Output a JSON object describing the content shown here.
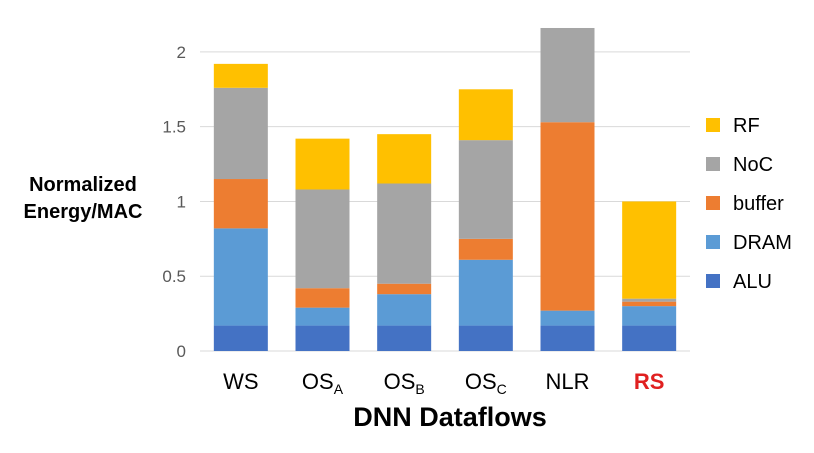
{
  "chart_data": {
    "type": "bar",
    "stacked": true,
    "xlabel": "DNN Dataflows",
    "ylabel": "Normalized Energy/MAC",
    "ylim": [
      0,
      2.2
    ],
    "yticks": [
      0,
      0.5,
      1,
      1.5,
      2
    ],
    "grid": true,
    "legend_placement": "right",
    "categories": [
      {
        "base": "WS",
        "sub": "",
        "color": "#000000"
      },
      {
        "base": "OS",
        "sub": "A",
        "color": "#000000"
      },
      {
        "base": "OS",
        "sub": "B",
        "color": "#000000"
      },
      {
        "base": "OS",
        "sub": "C",
        "color": "#000000"
      },
      {
        "base": "NLR",
        "sub": "",
        "color": "#000000"
      },
      {
        "base": "RS",
        "sub": "",
        "color": "#e02020",
        "bold": true
      }
    ],
    "series": [
      {
        "name": "ALU",
        "color": "#4472c4",
        "values": [
          0.17,
          0.17,
          0.17,
          0.17,
          0.17,
          0.17
        ]
      },
      {
        "name": "DRAM",
        "color": "#5b9bd5",
        "values": [
          0.65,
          0.12,
          0.21,
          0.44,
          0.1,
          0.13
        ]
      },
      {
        "name": "buffer",
        "color": "#ed7d31",
        "values": [
          0.33,
          0.13,
          0.07,
          0.14,
          1.26,
          0.03
        ]
      },
      {
        "name": "NoC",
        "color": "#a5a5a5",
        "values": [
          0.61,
          0.66,
          0.67,
          0.66,
          0.63,
          0.02
        ]
      },
      {
        "name": "RF",
        "color": "#ffc000",
        "values": [
          0.16,
          0.34,
          0.33,
          0.34,
          0.0,
          0.65
        ]
      }
    ]
  }
}
